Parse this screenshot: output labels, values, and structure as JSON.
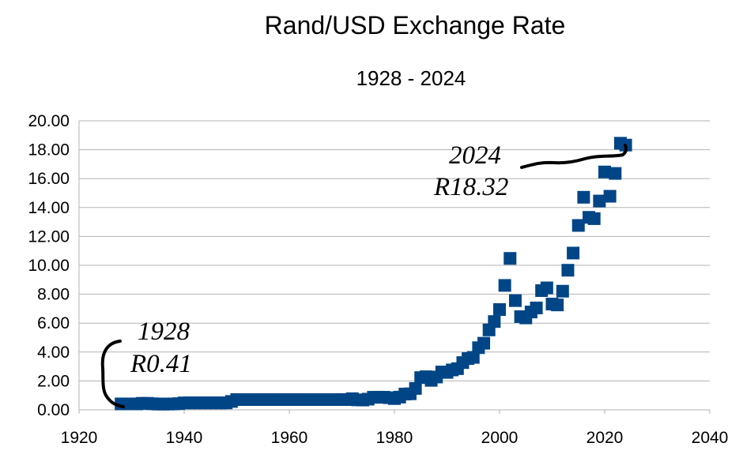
{
  "chart_data": {
    "type": "scatter",
    "title": "Rand/USD Exchange Rate",
    "subtitle": "1928 - 2024",
    "xlabel": "",
    "ylabel": "",
    "xlim": [
      1920,
      2040
    ],
    "ylim": [
      0,
      20
    ],
    "x_ticks": [
      "1920",
      "1940",
      "1960",
      "1980",
      "2000",
      "2020",
      "2040"
    ],
    "y_ticks": [
      "0.00",
      "2.00",
      "4.00",
      "6.00",
      "8.00",
      "10.00",
      "12.00",
      "14.00",
      "16.00",
      "18.00",
      "20.00"
    ],
    "grid": "horizontal",
    "legend": "none",
    "marker_color": "#004586",
    "points": [
      [
        1928,
        0.41
      ],
      [
        1929,
        0.41
      ],
      [
        1930,
        0.41
      ],
      [
        1931,
        0.41
      ],
      [
        1932,
        0.45
      ],
      [
        1933,
        0.45
      ],
      [
        1934,
        0.42
      ],
      [
        1935,
        0.4
      ],
      [
        1936,
        0.4
      ],
      [
        1937,
        0.4
      ],
      [
        1938,
        0.41
      ],
      [
        1939,
        0.43
      ],
      [
        1940,
        0.48
      ],
      [
        1941,
        0.48
      ],
      [
        1942,
        0.48
      ],
      [
        1943,
        0.48
      ],
      [
        1944,
        0.48
      ],
      [
        1945,
        0.48
      ],
      [
        1946,
        0.48
      ],
      [
        1947,
        0.48
      ],
      [
        1948,
        0.48
      ],
      [
        1949,
        0.58
      ],
      [
        1950,
        0.71
      ],
      [
        1951,
        0.71
      ],
      [
        1952,
        0.71
      ],
      [
        1953,
        0.71
      ],
      [
        1954,
        0.71
      ],
      [
        1955,
        0.71
      ],
      [
        1956,
        0.71
      ],
      [
        1957,
        0.71
      ],
      [
        1958,
        0.71
      ],
      [
        1959,
        0.71
      ],
      [
        1960,
        0.71
      ],
      [
        1961,
        0.71
      ],
      [
        1962,
        0.71
      ],
      [
        1963,
        0.71
      ],
      [
        1964,
        0.71
      ],
      [
        1965,
        0.71
      ],
      [
        1966,
        0.71
      ],
      [
        1967,
        0.71
      ],
      [
        1968,
        0.71
      ],
      [
        1969,
        0.71
      ],
      [
        1970,
        0.71
      ],
      [
        1971,
        0.71
      ],
      [
        1972,
        0.77
      ],
      [
        1973,
        0.69
      ],
      [
        1974,
        0.68
      ],
      [
        1975,
        0.74
      ],
      [
        1976,
        0.87
      ],
      [
        1977,
        0.87
      ],
      [
        1978,
        0.87
      ],
      [
        1979,
        0.84
      ],
      [
        1980,
        0.78
      ],
      [
        1981,
        0.88
      ],
      [
        1982,
        1.09
      ],
      [
        1983,
        1.11
      ],
      [
        1984,
        1.48
      ],
      [
        1985,
        2.23
      ],
      [
        1986,
        2.29
      ],
      [
        1987,
        2.04
      ],
      [
        1988,
        2.27
      ],
      [
        1989,
        2.62
      ],
      [
        1990,
        2.59
      ],
      [
        1991,
        2.76
      ],
      [
        1992,
        2.85
      ],
      [
        1993,
        3.27
      ],
      [
        1994,
        3.55
      ],
      [
        1995,
        3.63
      ],
      [
        1996,
        4.3
      ],
      [
        1997,
        4.61
      ],
      [
        1998,
        5.53
      ],
      [
        1999,
        6.11
      ],
      [
        2000,
        6.94
      ],
      [
        2001,
        8.61
      ],
      [
        2002,
        10.48
      ],
      [
        2003,
        7.56
      ],
      [
        2004,
        6.45
      ],
      [
        2005,
        6.36
      ],
      [
        2006,
        6.77
      ],
      [
        2007,
        7.05
      ],
      [
        2008,
        8.25
      ],
      [
        2009,
        8.44
      ],
      [
        2010,
        7.32
      ],
      [
        2011,
        7.26
      ],
      [
        2012,
        8.21
      ],
      [
        2013,
        9.66
      ],
      [
        2014,
        10.85
      ],
      [
        2015,
        12.76
      ],
      [
        2016,
        14.71
      ],
      [
        2017,
        13.32
      ],
      [
        2018,
        13.23
      ],
      [
        2019,
        14.45
      ],
      [
        2020,
        16.46
      ],
      [
        2021,
        14.78
      ],
      [
        2022,
        16.36
      ],
      [
        2023,
        18.45
      ],
      [
        2024,
        18.32
      ]
    ],
    "annotations": [
      {
        "year": "1928",
        "value": "R0.41"
      },
      {
        "year": "2024",
        "value": "R18.32"
      }
    ]
  }
}
